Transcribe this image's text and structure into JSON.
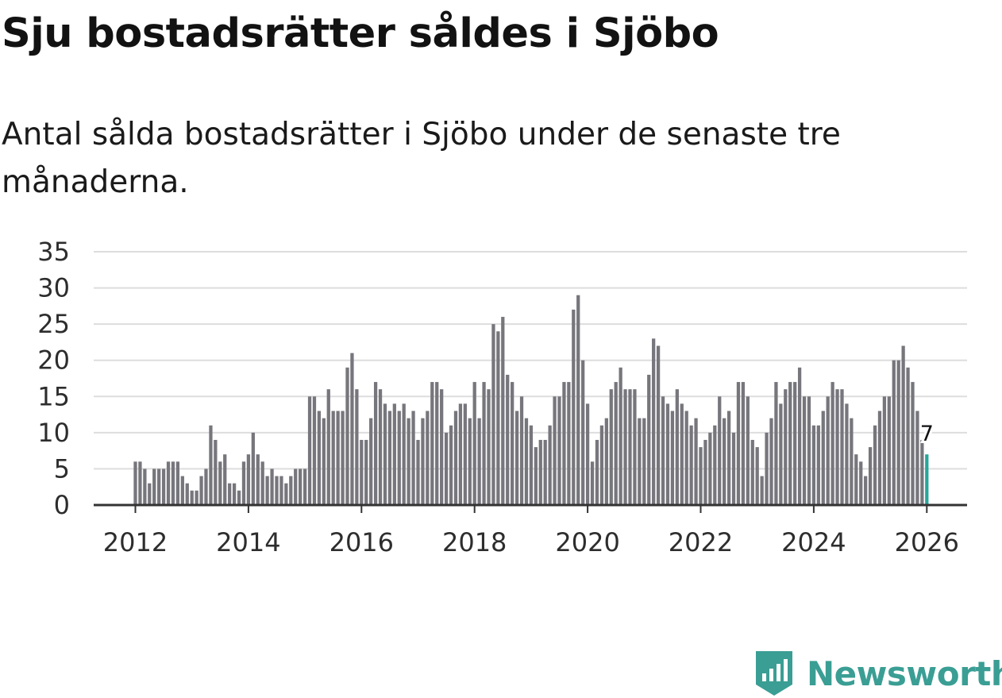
{
  "header": {
    "title": "Sju bostadsrätter såldes i Sjöbo",
    "subtitle": "Antal sålda bostadsrätter i Sjöbo under de senaste tre månaderna."
  },
  "brand": {
    "name": "Newsworthy",
    "logo_icon": "bar-chart-badge-icon",
    "color": "#3a9e94"
  },
  "colors": {
    "bar": "#76767c",
    "highlight": "#26a69a",
    "grid": "#dddddd",
    "axis": "#333333"
  },
  "chart_data": {
    "type": "bar",
    "title": "Sju bostadsrätter såldes i Sjöbo",
    "subtitle": "Antal sålda bostadsrätter i Sjöbo under de senaste tre månaderna.",
    "xlabel": "",
    "ylabel": "",
    "ylim": [
      0,
      35
    ],
    "yticks": [
      0,
      5,
      10,
      15,
      20,
      25,
      30,
      35
    ],
    "xticks": [
      {
        "year": 2012,
        "label": "2012"
      },
      {
        "year": 2014,
        "label": "2014"
      },
      {
        "year": 2016,
        "label": "2016"
      },
      {
        "year": 2018,
        "label": "2018"
      },
      {
        "year": 2020,
        "label": "2020"
      },
      {
        "year": 2022,
        "label": "2022"
      },
      {
        "year": 2024,
        "label": "2024"
      },
      {
        "year": 2026,
        "label": "2026"
      }
    ],
    "grid": true,
    "frequency": "monthly",
    "start": "2012-01",
    "end": "2026-01",
    "values": [
      6,
      6,
      5,
      3,
      5,
      5,
      5,
      6,
      6,
      6,
      4,
      3,
      2,
      2,
      4,
      5,
      11,
      9,
      6,
      7,
      3,
      3,
      2,
      6,
      7,
      10,
      7,
      6,
      4,
      5,
      4,
      4,
      3,
      4,
      5,
      5,
      5,
      15,
      15,
      13,
      12,
      16,
      13,
      13,
      13,
      19,
      21,
      16,
      9,
      9,
      12,
      17,
      16,
      14,
      13,
      14,
      13,
      14,
      12,
      13,
      9,
      12,
      13,
      17,
      17,
      16,
      10,
      11,
      13,
      14,
      14,
      12,
      17,
      12,
      17,
      16,
      25,
      24,
      26,
      18,
      17,
      13,
      15,
      12,
      11,
      8,
      9,
      9,
      11,
      15,
      15,
      17,
      17,
      27,
      29,
      20,
      14,
      6,
      9,
      11,
      12,
      16,
      17,
      19,
      16,
      16,
      16,
      12,
      12,
      18,
      23,
      22,
      15,
      14,
      13,
      16,
      14,
      13,
      11,
      12,
      8,
      9,
      10,
      11,
      15,
      12,
      13,
      10,
      17,
      17,
      15,
      9,
      8,
      4,
      10,
      12,
      17,
      14,
      16,
      17,
      17,
      19,
      15,
      15,
      11,
      11,
      13,
      15,
      17,
      16,
      16,
      14,
      12,
      7,
      6,
      4,
      8,
      11,
      13,
      15,
      15,
      20,
      20,
      22,
      19,
      17,
      13,
      9,
      7
    ],
    "highlight": {
      "month": "2026-01",
      "value": 7,
      "label": "7"
    }
  }
}
